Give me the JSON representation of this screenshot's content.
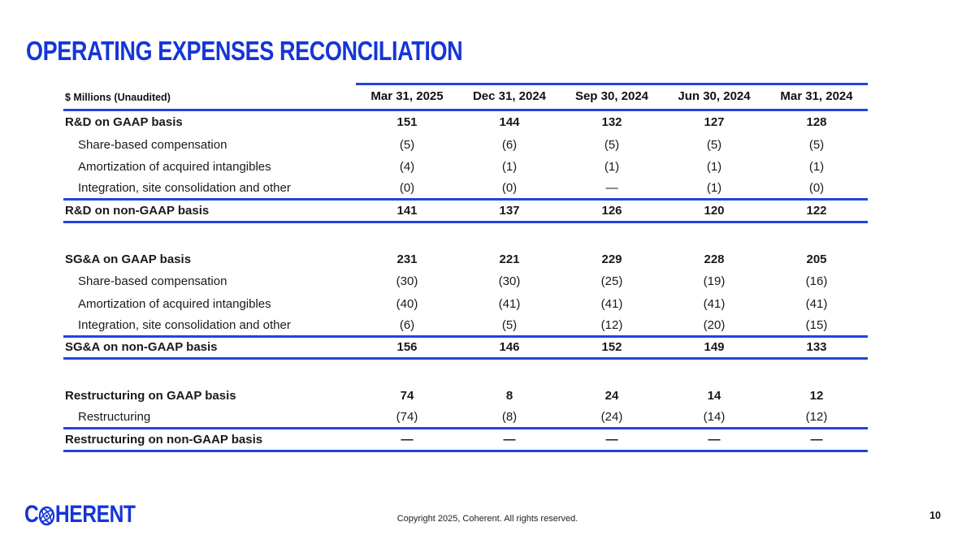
{
  "slide": {
    "title": "OPERATING EXPENSES RECONCILIATION",
    "page_number": "10",
    "copyright": "Copyright 2025, Coherent. All rights reserved.",
    "logo": {
      "text_start": "C",
      "text_end": "HERENT",
      "icon": "globe-atom-icon"
    }
  },
  "colors": {
    "brand_blue": "#1535d6",
    "rule_blue": "#2343dd",
    "text_dark": "#1a1a1a"
  },
  "table": {
    "unit_label": "$ Millions (Unaudited)",
    "columns": [
      "Mar 31, 2025",
      "Dec 31, 2024",
      "Sep 30, 2024",
      "Jun 30, 2024",
      "Mar 31, 2024"
    ],
    "sections": [
      {
        "name": "R&D",
        "rows": [
          {
            "label": "R&D on GAAP basis",
            "bold": true,
            "indent": false,
            "line_below": false,
            "values": [
              "151",
              "144",
              "132",
              "127",
              "128"
            ]
          },
          {
            "label": "Share-based compensation",
            "bold": false,
            "indent": true,
            "line_below": false,
            "values": [
              "(5)",
              "(6)",
              "(5)",
              "(5)",
              "(5)"
            ]
          },
          {
            "label": "Amortization of acquired intangibles",
            "bold": false,
            "indent": true,
            "line_below": false,
            "values": [
              "(4)",
              "(1)",
              "(1)",
              "(1)",
              "(1)"
            ]
          },
          {
            "label": "Integration, site consolidation and other",
            "bold": false,
            "indent": true,
            "line_below": true,
            "values": [
              "(0)",
              "(0)",
              "—",
              "(1)",
              "(0)"
            ]
          },
          {
            "label": "R&D on non-GAAP basis",
            "bold": true,
            "indent": false,
            "line_below": true,
            "values": [
              "141",
              "137",
              "126",
              "120",
              "122"
            ]
          }
        ]
      },
      {
        "name": "SG&A",
        "rows": [
          {
            "label": "SG&A on GAAP basis",
            "bold": true,
            "indent": false,
            "line_below": false,
            "values": [
              "231",
              "221",
              "229",
              "228",
              "205"
            ]
          },
          {
            "label": "Share-based compensation",
            "bold": false,
            "indent": true,
            "line_below": false,
            "values": [
              "(30)",
              "(30)",
              "(25)",
              "(19)",
              "(16)"
            ]
          },
          {
            "label": "Amortization of acquired intangibles",
            "bold": false,
            "indent": true,
            "line_below": false,
            "values": [
              "(40)",
              "(41)",
              "(41)",
              "(41)",
              "(41)"
            ]
          },
          {
            "label": "Integration, site consolidation and other",
            "bold": false,
            "indent": true,
            "line_below": true,
            "values": [
              "(6)",
              "(5)",
              "(12)",
              "(20)",
              "(15)"
            ]
          },
          {
            "label": "SG&A on non-GAAP basis",
            "bold": true,
            "indent": false,
            "line_below": true,
            "values": [
              "156",
              "146",
              "152",
              "149",
              "133"
            ]
          }
        ]
      },
      {
        "name": "Restructuring",
        "rows": [
          {
            "label": "Restructuring on GAAP basis",
            "bold": true,
            "indent": false,
            "line_below": false,
            "values": [
              "74",
              "8",
              "24",
              "14",
              "12"
            ]
          },
          {
            "label": "Restructuring",
            "bold": false,
            "indent": true,
            "line_below": true,
            "values": [
              "(74)",
              "(8)",
              "(24)",
              "(14)",
              "(12)"
            ]
          },
          {
            "label": "Restructuring on non-GAAP basis",
            "bold": true,
            "indent": false,
            "line_below": true,
            "values": [
              "—",
              "—",
              "—",
              "—",
              "—"
            ]
          }
        ]
      }
    ]
  }
}
